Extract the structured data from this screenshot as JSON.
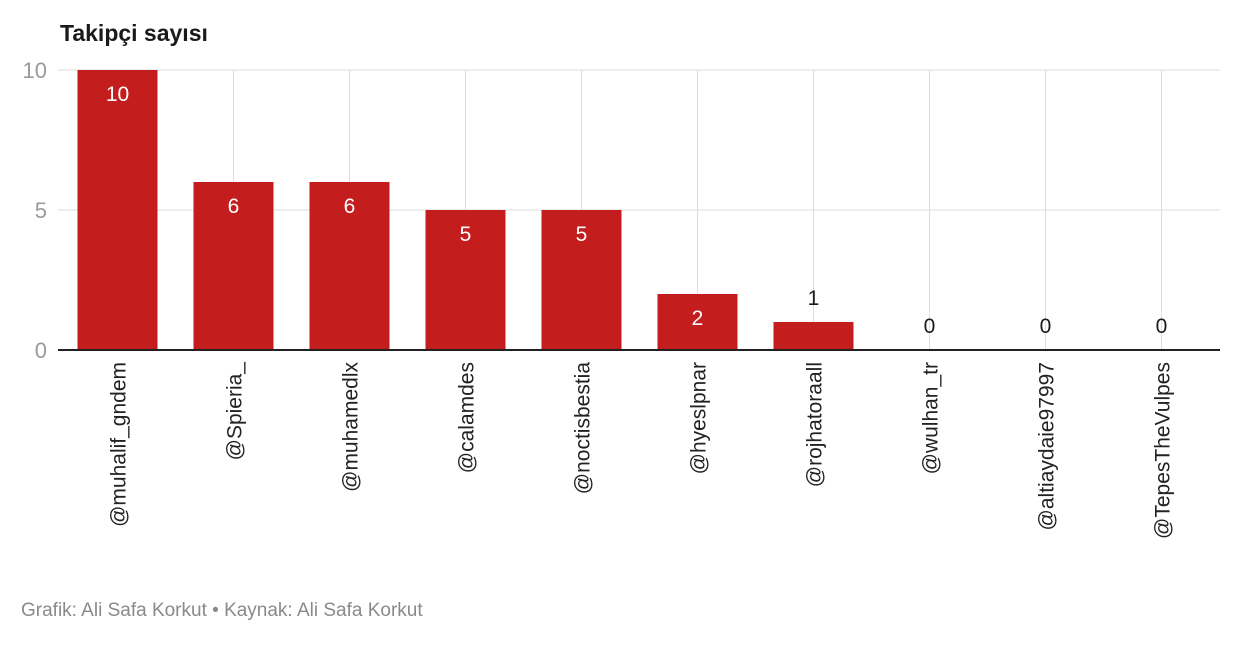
{
  "chart_data": {
    "type": "bar",
    "title": "Takipçi sayısı",
    "categories": [
      "@muhalif_gndem",
      "@Spieria_",
      "@muhamedlx",
      "@calamdes",
      "@noctisbestia",
      "@hyeslpnar",
      "@rojhatoraall",
      "@wulhan_tr",
      "@altiaydaie97997",
      "@TepesTheVulpes"
    ],
    "values": [
      10,
      6,
      6,
      5,
      5,
      2,
      1,
      0,
      0,
      0
    ],
    "ylim": [
      0,
      10
    ],
    "yticks": [
      0,
      5,
      10
    ],
    "grid": true,
    "legend": "none",
    "bar_color": "#c41d1d"
  },
  "footer": "Grafik: Ali Safa Korkut • Kaynak: Ali Safa Korkut"
}
